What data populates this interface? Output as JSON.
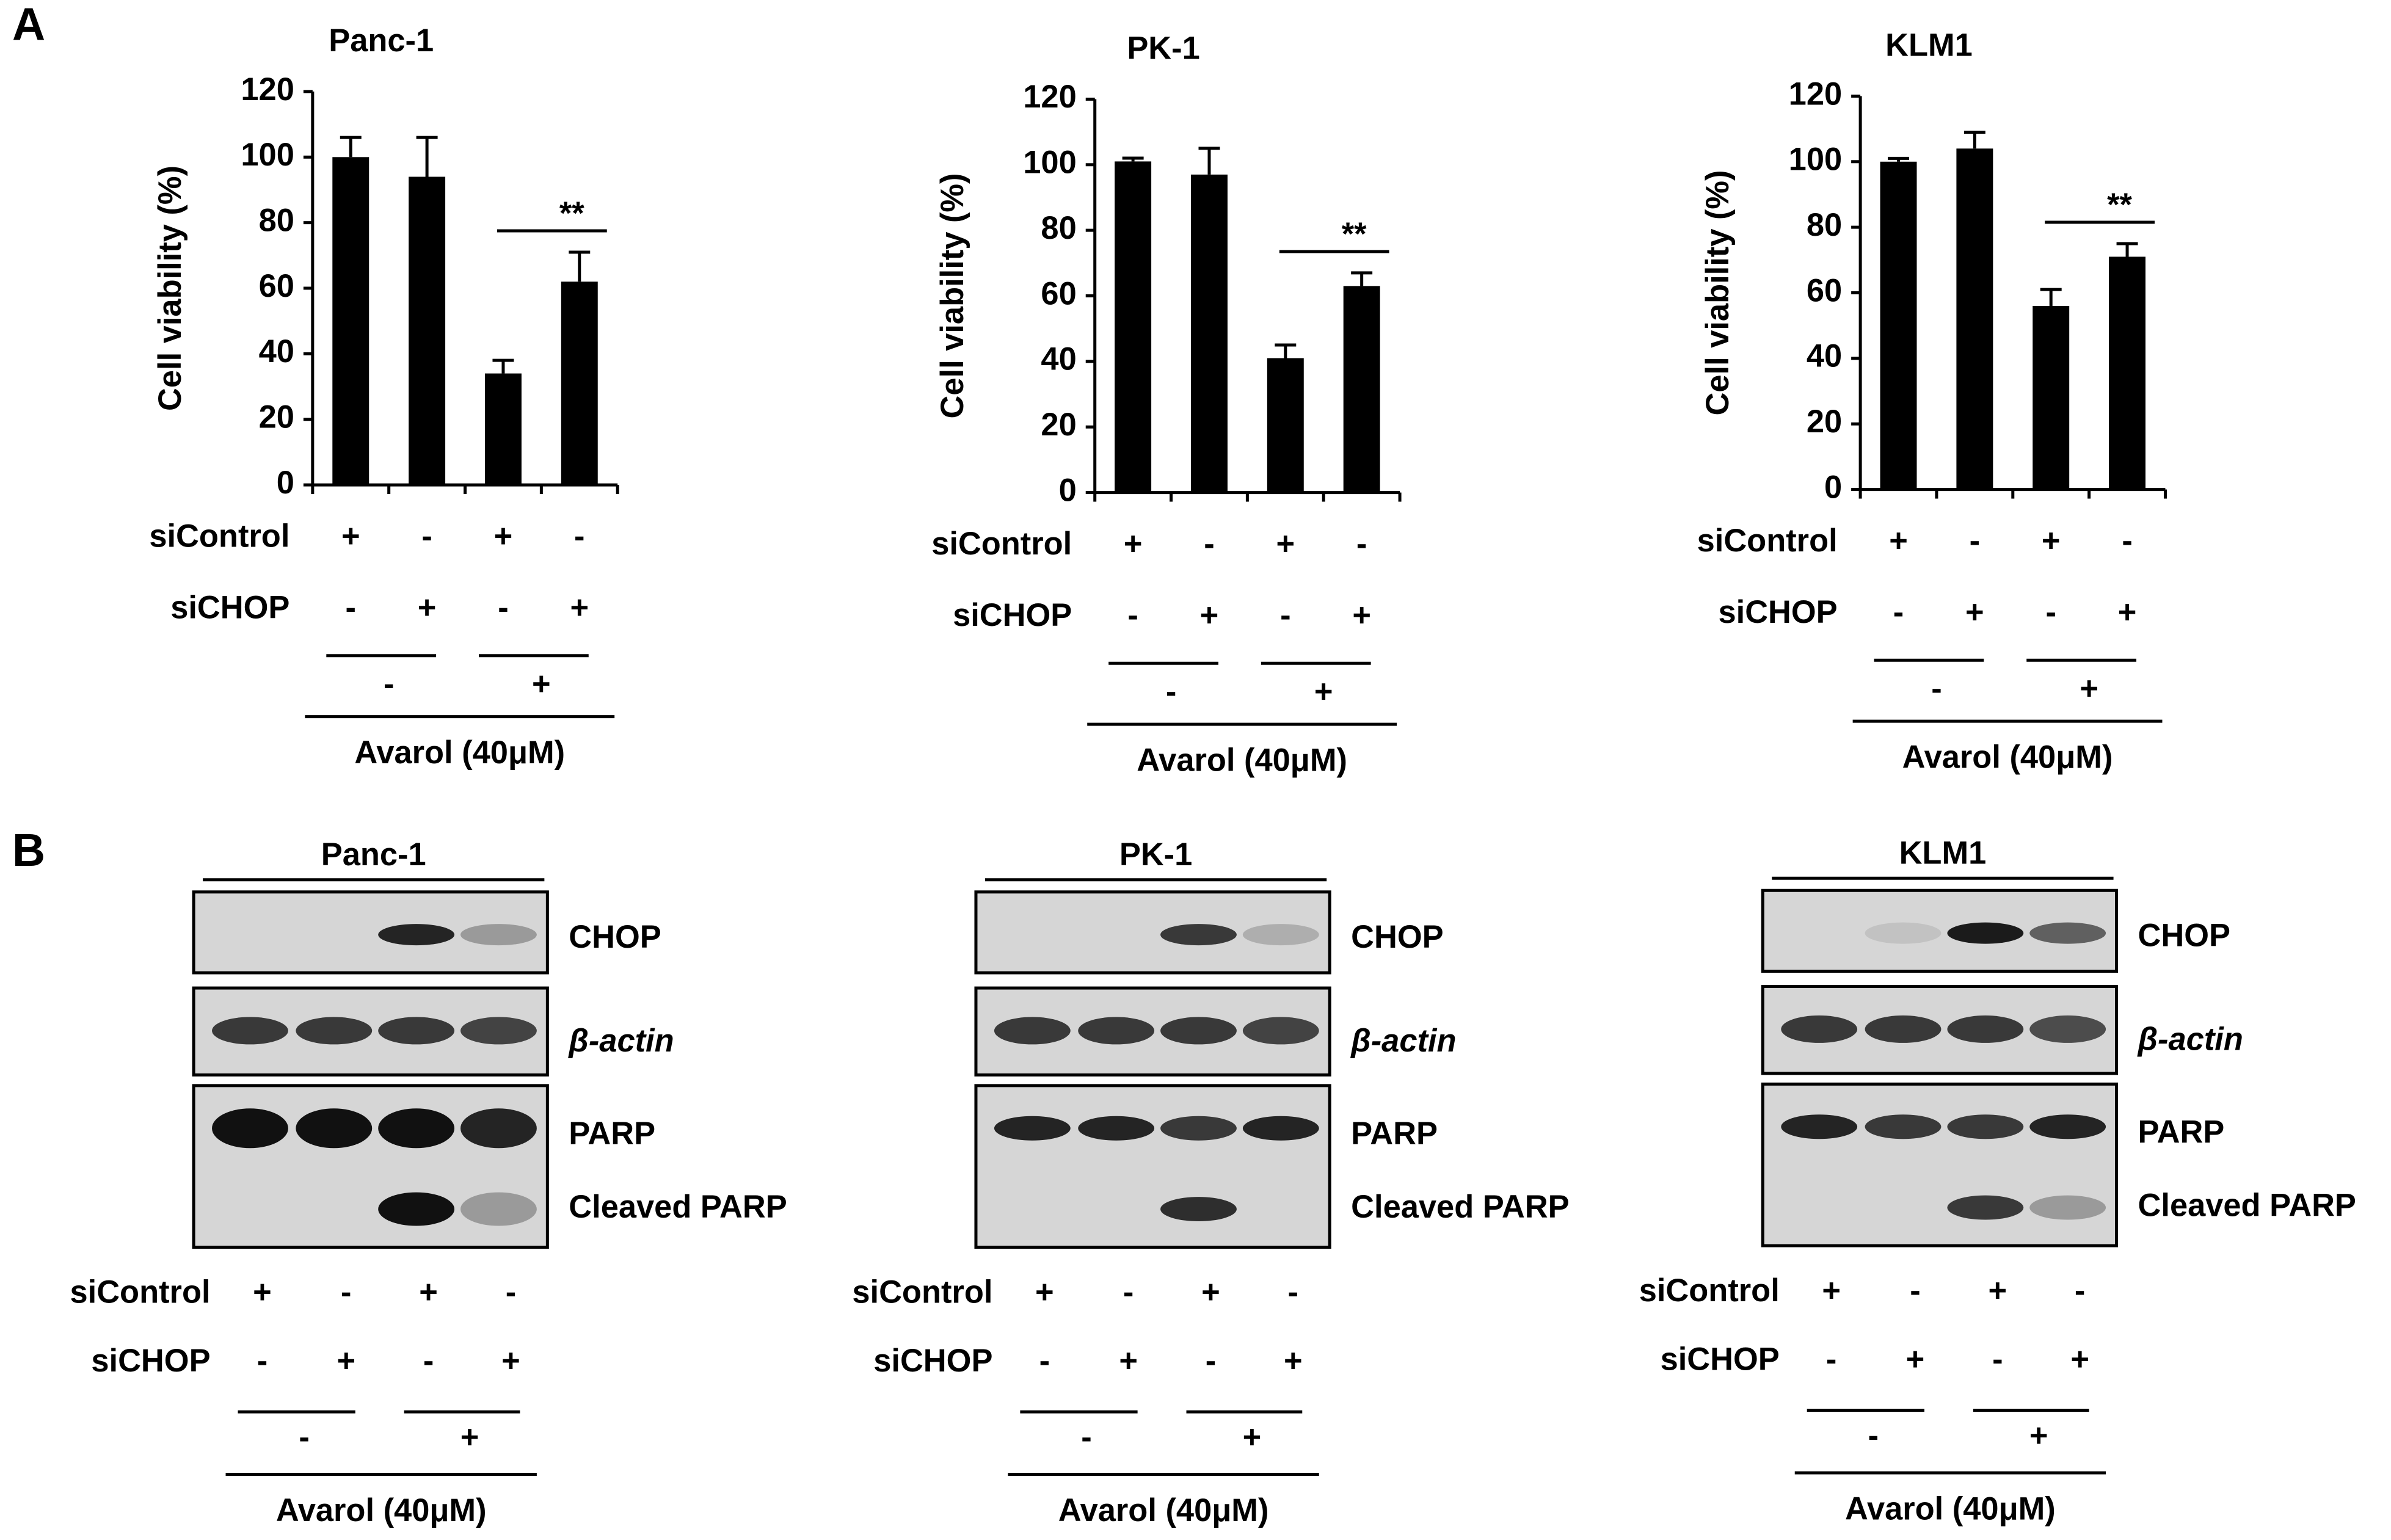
{
  "panels": [
    "A",
    "B"
  ],
  "chart_data": [
    {
      "type": "bar",
      "title": "Panc-1",
      "y_label": "Cell viability (%)",
      "categories": [
        null,
        null,
        null,
        null
      ],
      "values": [
        100,
        94,
        34,
        62
      ],
      "errors": [
        6,
        12,
        4,
        9
      ],
      "color": "#000000",
      "ylim": [
        0,
        120
      ],
      "yticks": [
        0,
        20,
        40,
        60,
        80,
        100,
        120
      ],
      "significance": "**",
      "conditions": [
        {
          "label": "siControl",
          "marks": [
            "+",
            "-",
            "+",
            "-"
          ]
        },
        {
          "label": "siCHOP",
          "marks": [
            "-",
            "+",
            "-",
            "+"
          ]
        }
      ],
      "treatment": {
        "label": "Avarol (40μM)",
        "marks": [
          "-",
          "+"
        ]
      }
    },
    {
      "type": "bar",
      "title": "PK-1",
      "y_label": "Cell viability (%)",
      "categories": [
        null,
        null,
        null,
        null
      ],
      "values": [
        101,
        97,
        41,
        63
      ],
      "errors": [
        1,
        8,
        4,
        4
      ],
      "color": "#000000",
      "ylim": [
        0,
        120
      ],
      "yticks": [
        0,
        20,
        40,
        60,
        80,
        100,
        120
      ],
      "significance": "**",
      "conditions": [
        {
          "label": "siControl",
          "marks": [
            "+",
            "-",
            "+",
            "-"
          ]
        },
        {
          "label": "siCHOP",
          "marks": [
            "-",
            "+",
            "-",
            "+"
          ]
        }
      ],
      "treatment": {
        "label": "Avarol (40μM)",
        "marks": [
          "-",
          "+"
        ]
      }
    },
    {
      "type": "bar",
      "title": "KLM1",
      "y_label": "Cell viability (%)",
      "categories": [
        null,
        null,
        null,
        null
      ],
      "values": [
        100,
        104,
        56,
        71
      ],
      "errors": [
        1,
        5,
        5,
        4
      ],
      "color": "#000000",
      "ylim": [
        0,
        120
      ],
      "yticks": [
        0,
        20,
        40,
        60,
        80,
        100,
        120
      ],
      "significance": "**",
      "conditions": [
        {
          "label": "siControl",
          "marks": [
            "+",
            "-",
            "+",
            "-"
          ]
        },
        {
          "label": "siCHOP",
          "marks": [
            "-",
            "+",
            "-",
            "+"
          ]
        }
      ],
      "treatment": {
        "label": "Avarol (40μM)",
        "marks": [
          "-",
          "+"
        ]
      }
    }
  ],
  "blots": [
    {
      "title": "Panc-1",
      "bands": [
        "CHOP",
        "β-actin",
        "PARP",
        "Cleaved PARP"
      ],
      "conditions": [
        {
          "label": "siControl",
          "marks": [
            "+",
            "-",
            "+",
            "-"
          ]
        },
        {
          "label": "siCHOP",
          "marks": [
            "-",
            "+",
            "-",
            "+"
          ]
        }
      ],
      "treatment": {
        "label": "Avarol (40μM)",
        "marks": [
          "-",
          "+"
        ]
      }
    },
    {
      "title": "PK-1",
      "bands": [
        "CHOP",
        "β-actin",
        "PARP",
        "Cleaved PARP"
      ],
      "conditions": [
        {
          "label": "siControl",
          "marks": [
            "+",
            "-",
            "+",
            "-"
          ]
        },
        {
          "label": "siCHOP",
          "marks": [
            "-",
            "+",
            "-",
            "+"
          ]
        }
      ],
      "treatment": {
        "label": "Avarol (40μM)",
        "marks": [
          "-",
          "+"
        ]
      }
    },
    {
      "title": "KLM1",
      "bands": [
        "CHOP",
        "β-actin",
        "PARP",
        "Cleaved PARP"
      ],
      "conditions": [
        {
          "label": "siControl",
          "marks": [
            "+",
            "-",
            "+",
            "-"
          ]
        },
        {
          "label": "siCHOP",
          "marks": [
            "-",
            "+",
            "-",
            "+"
          ]
        }
      ],
      "treatment": {
        "label": "Avarol (40μM)",
        "marks": [
          "-",
          "+"
        ]
      }
    }
  ]
}
